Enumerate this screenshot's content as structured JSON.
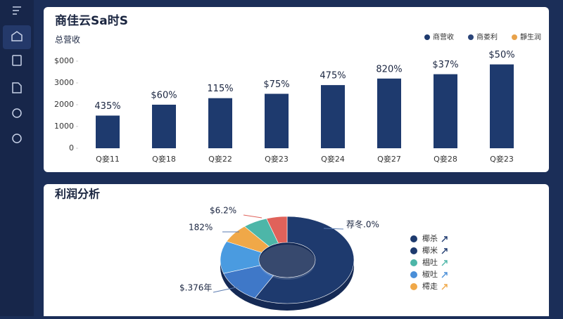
{
  "header": {
    "title": "商佳云Sa时S"
  },
  "chart_data": [
    {
      "type": "bar",
      "subtitle": "总营收",
      "categories": [
        "Q妾11",
        "Q妾18",
        "Q妾22",
        "Q妾23",
        "Q妾24",
        "Q妾27",
        "Q妾28",
        "Q妾23"
      ],
      "series": [
        {
          "name": "商营收",
          "color": "#1e3a6e",
          "values": [
            1500,
            2000,
            2300,
            2500,
            2900,
            3200,
            3400,
            3850
          ]
        }
      ],
      "legend": [
        {
          "name": "商营收",
          "color": "#1e3a6e"
        },
        {
          "name": "商娄利",
          "color": "#2a4478"
        },
        {
          "name": "靜生润",
          "color": "#e8a24a"
        }
      ],
      "annotations": [
        "435%",
        "$60%",
        "115%",
        "$75%",
        "475%",
        "820%",
        "$37%",
        "$50%"
      ],
      "ylim": [
        0,
        4000
      ],
      "yticks": [
        0,
        1000,
        2000,
        3000,
        {
          "value": 4000,
          "label": "$000"
        }
      ],
      "grid": false
    },
    {
      "type": "pie",
      "title": "利润分析",
      "categories": [
        "椰杀",
        "椰米",
        "椒吐",
        "樗走",
        "椙吐",
        null
      ],
      "values": [
        58,
        12,
        12,
        7,
        6,
        5
      ],
      "colors": [
        "#1e3a6e",
        "#3f78c8",
        "#4a9be0",
        "#f0a848",
        "#4db6a8",
        "#e0625a"
      ],
      "legend": [
        {
          "name": "椰杀",
          "color": "#1e3a6e"
        },
        {
          "name": "椰米",
          "color": "#1e3a6e"
        },
        {
          "name": "椙吐",
          "color": "#4db6a8"
        },
        {
          "name": "椒吐",
          "color": "#4a8fd8"
        },
        {
          "name": "樗走",
          "color": "#f0a848"
        }
      ],
      "annotations": [
        "荐冬.0%",
        "$.376年",
        "182%",
        "$6.2%"
      ]
    }
  ]
}
